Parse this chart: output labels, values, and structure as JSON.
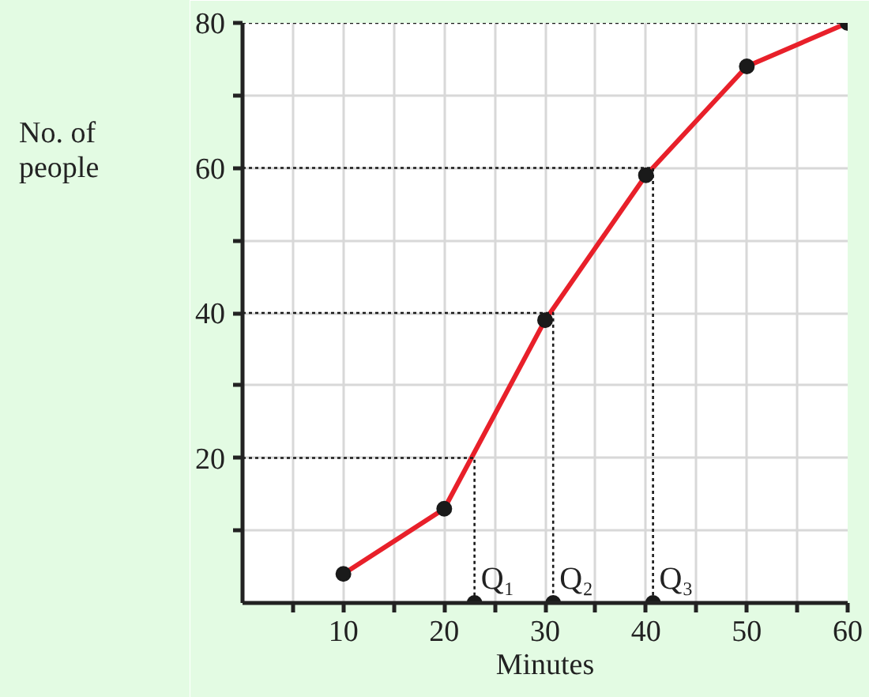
{
  "chart_data": {
    "type": "line",
    "xlabel": "Minutes",
    "ylabel": "No. of\npeople",
    "xlim": [
      0,
      60
    ],
    "ylim": [
      0,
      80
    ],
    "xticks": [
      {
        "value": 5,
        "label": null
      },
      10,
      {
        "value": 15,
        "label": null
      },
      20,
      {
        "value": 25,
        "label": null
      },
      30,
      {
        "value": 35,
        "label": null
      },
      40,
      {
        "value": 45,
        "label": null
      },
      50,
      {
        "value": 55,
        "label": null
      },
      60
    ],
    "yticks": [
      {
        "value": 10,
        "label": null
      },
      20,
      {
        "value": 30,
        "label": null
      },
      40,
      {
        "value": 50,
        "label": null
      },
      60,
      {
        "value": 70,
        "label": null
      },
      80
    ],
    "grid": true,
    "series": [
      {
        "color": "#e8202a",
        "x": [
          10,
          20,
          30,
          40,
          50,
          60
        ],
        "values": [
          4,
          13,
          39,
          59,
          74,
          80
        ],
        "marker": "none",
        "line_style": "solid"
      },
      {
        "type": "scatter",
        "color": "#1a1a1a",
        "x": [
          10,
          20,
          30,
          40,
          50,
          60
        ],
        "values": [
          4,
          13,
          39,
          59,
          74,
          80
        ],
        "marker": "circle"
      },
      {
        "type": "line",
        "color": "#1a1a1a",
        "x": [
          0,
          60
        ],
        "values": [
          80,
          80
        ],
        "marker": "none",
        "line_style": "dotted"
      },
      {
        "type": "line",
        "color": "#1a1a1a",
        "x": [
          0,
          23,
          23
        ],
        "values": [
          20,
          20,
          0
        ],
        "marker": "none",
        "line_style": "dotted"
      },
      {
        "type": "line",
        "color": "#1a1a1a",
        "x": [
          0,
          30.8,
          30.8
        ],
        "values": [
          40,
          40,
          0
        ],
        "marker": "none",
        "line_style": "dotted"
      },
      {
        "type": "line",
        "color": "#1a1a1a",
        "x": [
          0,
          40.7,
          40.7
        ],
        "values": [
          60,
          60,
          0
        ],
        "marker": "none",
        "line_style": "dotted"
      },
      {
        "type": "scatter",
        "color": "#1a1a1a",
        "x": [
          23,
          30.8,
          40.7
        ],
        "values": [
          0,
          0,
          0
        ],
        "marker": "circle"
      }
    ],
    "annotations": [
      {
        "text": "Q₁",
        "x": 23,
        "y": 0
      },
      {
        "text": "Q₂",
        "x": 30.8,
        "y": 0
      },
      {
        "text": "Q₃",
        "x": 40.7,
        "y": 0
      }
    ]
  }
}
